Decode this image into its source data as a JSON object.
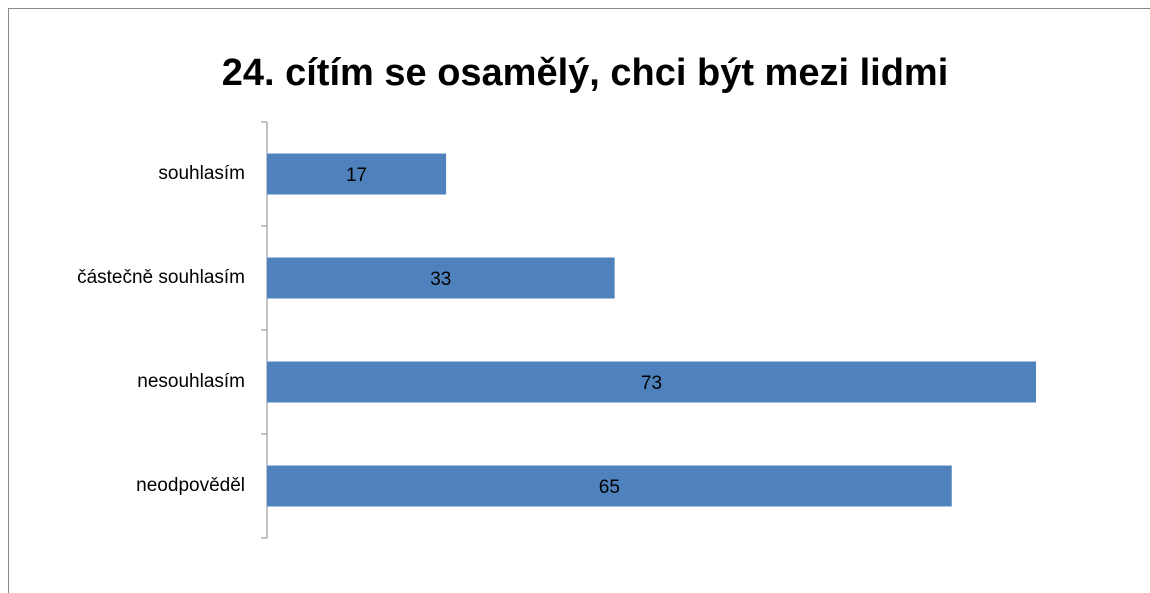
{
  "chart_data": {
    "type": "bar",
    "orientation": "horizontal",
    "title": "24. cítím se osamělý, chci být mezi lidmi",
    "categories": [
      "souhlasím",
      "částečně souhlasím",
      "nesouhlasím",
      "neodpověděl"
    ],
    "values": [
      17,
      33,
      73,
      65
    ],
    "color": "#4f81bd",
    "data_labels": true
  }
}
